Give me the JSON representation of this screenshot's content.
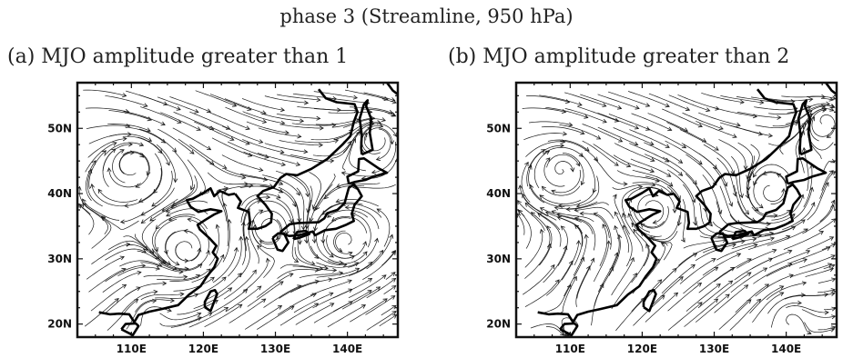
{
  "figure": {
    "title": "phase 3 (Streamline, 950 hPa)",
    "panels": [
      {
        "label": "(a) MJO amplitude greater than 1"
      },
      {
        "label": "(b) MJO amplitude greater than 2"
      }
    ]
  },
  "axes": {
    "lon_ticks": [
      "110E",
      "120E",
      "130E",
      "140E"
    ],
    "lat_ticks": [
      "50N",
      "40N",
      "30N",
      "20N"
    ],
    "lon_values": [
      110,
      120,
      130,
      140
    ],
    "lat_values": [
      50,
      40,
      30,
      20
    ],
    "lon_range": [
      102.5,
      147
    ],
    "lat_range": [
      18,
      57
    ]
  },
  "colors": {
    "ink": "#111111",
    "background": "#ffffff"
  }
}
